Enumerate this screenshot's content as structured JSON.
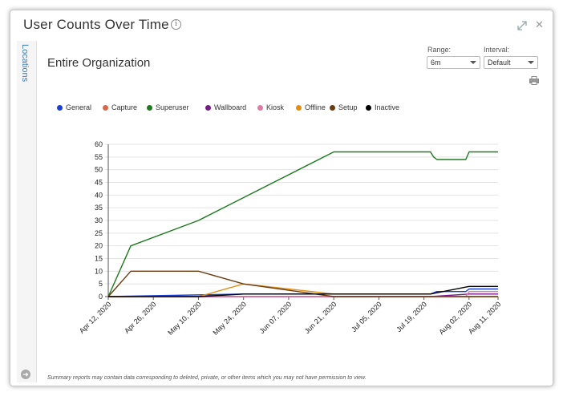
{
  "window": {
    "title": "User Counts Over Time",
    "info_icon": "info-icon",
    "expand_icon": "expand-icon",
    "close_icon": "close-icon"
  },
  "sidebar": {
    "tab_label": "Locations",
    "collapse_icon": "arrow-right-icon"
  },
  "main": {
    "org_title": "Entire Organization",
    "range": {
      "label": "Range:",
      "value": "6m"
    },
    "interval": {
      "label": "Interval:",
      "value": "Default"
    },
    "print_icon": "printer-icon",
    "footnote": "Summary reports may contain data corresponding to deleted, private, or other items which you may not have permission to view."
  },
  "chart_data": {
    "type": "line",
    "title": "",
    "xlabel": "",
    "ylabel": "",
    "ylim": [
      0,
      60
    ],
    "yticks": [
      0,
      5,
      10,
      15,
      20,
      25,
      30,
      35,
      40,
      45,
      50,
      55,
      60
    ],
    "x_tick_labels": [
      "Apr 12, 2020",
      "Apr 26, 2020",
      "May 10, 2020",
      "May 24, 2020",
      "Jun 07, 2020",
      "Jun 21, 2020",
      "Jul 05, 2020",
      "Jul 19, 2020",
      "Aug 02, 2020",
      "Aug 11, 2020"
    ],
    "x_tick_values": [
      0,
      14,
      28,
      42,
      56,
      70,
      84,
      98,
      112,
      121
    ],
    "x_domain": [
      0,
      121
    ],
    "grid": "horizontal",
    "legend_position": "top",
    "series": [
      {
        "name": "General",
        "color": "#1a3fd4",
        "points": [
          [
            0,
            0
          ],
          [
            42,
            1
          ],
          [
            100,
            1
          ],
          [
            102,
            2
          ],
          [
            111,
            2
          ],
          [
            112,
            3
          ],
          [
            121,
            3
          ]
        ]
      },
      {
        "name": "Capture",
        "color": "#d9674a",
        "points": [
          [
            0,
            0
          ],
          [
            100,
            0
          ],
          [
            112,
            0
          ],
          [
            121,
            0
          ]
        ]
      },
      {
        "name": "Superuser",
        "color": "#1e7a1e",
        "points": [
          [
            0,
            0
          ],
          [
            7,
            20
          ],
          [
            28,
            30
          ],
          [
            42,
            39
          ],
          [
            70,
            57
          ],
          [
            100,
            57
          ],
          [
            101,
            55
          ],
          [
            102,
            54
          ],
          [
            111,
            54
          ],
          [
            112,
            57
          ],
          [
            121,
            57
          ]
        ]
      },
      {
        "name": "Wallboard",
        "color": "#7a1a8a",
        "points": [
          [
            0,
            0
          ],
          [
            100,
            0
          ],
          [
            112,
            1
          ],
          [
            121,
            1
          ]
        ]
      },
      {
        "name": "Kiosk",
        "color": "#e07aa6",
        "points": [
          [
            0,
            0
          ],
          [
            111,
            0
          ],
          [
            112,
            2
          ],
          [
            121,
            2
          ]
        ]
      },
      {
        "name": "Offline",
        "color": "#e38e12",
        "points": [
          [
            0,
            0
          ],
          [
            28,
            0
          ],
          [
            42,
            5
          ],
          [
            56,
            3
          ],
          [
            70,
            1
          ],
          [
            100,
            1
          ]
        ]
      },
      {
        "name": "Setup",
        "color": "#6b3b12",
        "points": [
          [
            0,
            0
          ],
          [
            7,
            10
          ],
          [
            28,
            10
          ],
          [
            42,
            5
          ],
          [
            70,
            0
          ],
          [
            121,
            0
          ]
        ]
      },
      {
        "name": "Inactive",
        "color": "#000000",
        "points": [
          [
            0,
            0
          ],
          [
            28,
            0
          ],
          [
            42,
            1
          ],
          [
            100,
            1
          ],
          [
            112,
            4
          ],
          [
            121,
            4
          ]
        ]
      }
    ]
  }
}
